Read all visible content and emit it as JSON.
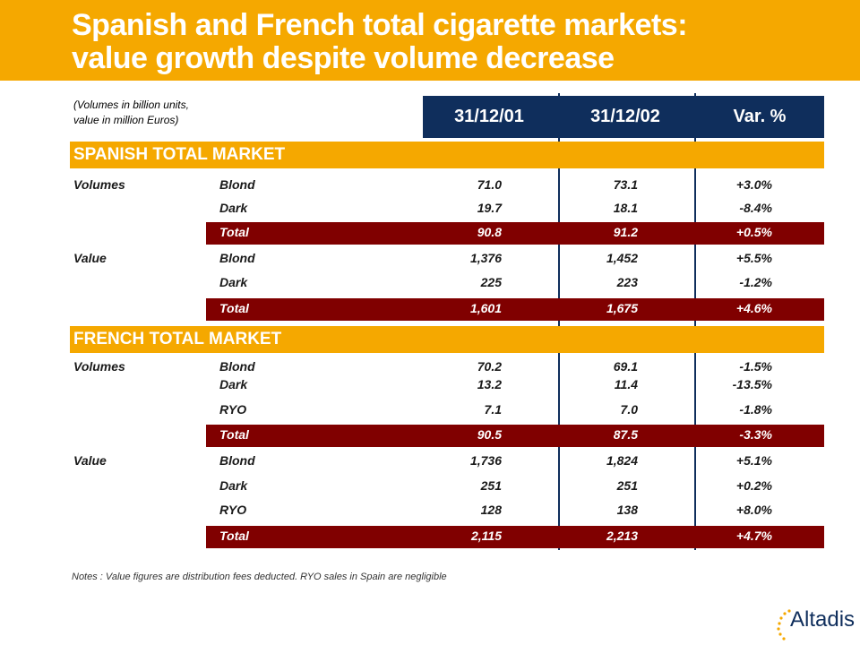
{
  "title": {
    "line1": "Spanish and French total cigarette markets:",
    "line2": "value growth despite volume decrease"
  },
  "units_note": {
    "line1": "(Volumes in billion units,",
    "line2": "value in million Euros)"
  },
  "columns": [
    "31/12/01",
    "31/12/02",
    "Var. %"
  ],
  "sections": [
    {
      "label": "SPANISH TOTAL MARKET",
      "rows": [
        {
          "group": "Volumes",
          "item": "Blond",
          "v1": "71.0",
          "v2": "73.1",
          "var": "+3.0%"
        },
        {
          "group": "",
          "item": "Dark",
          "v1": "19.7",
          "v2": "18.1",
          "var": "-8.4%"
        },
        {
          "group": "",
          "item": "Total",
          "v1": "90.8",
          "v2": "91.2",
          "var": "+0.5%",
          "total": true
        },
        {
          "group": "Value",
          "item": "Blond",
          "v1": "1,376",
          "v2": "1,452",
          "var": "+5.5%"
        },
        {
          "group": "",
          "item": "Dark",
          "v1": "225",
          "v2": "223",
          "var": "-1.2%"
        },
        {
          "group": "",
          "item": "Total",
          "v1": "1,601",
          "v2": "1,675",
          "var": "+4.6%",
          "total": true
        }
      ]
    },
    {
      "label": "FRENCH TOTAL MARKET",
      "rows": [
        {
          "group": "Volumes",
          "item": "Blond",
          "v1": "70.2",
          "v2": "69.1",
          "var": "-1.5%"
        },
        {
          "group": "",
          "item": "Dark",
          "v1": "13.2",
          "v2": "11.4",
          "var": "-13.5%"
        },
        {
          "group": "",
          "item": "RYO",
          "v1": "7.1",
          "v2": "7.0",
          "var": "-1.8%"
        },
        {
          "group": "",
          "item": "Total",
          "v1": "90.5",
          "v2": "87.5",
          "var": "-3.3%",
          "total": true
        },
        {
          "group": "Value",
          "item": "Blond",
          "v1": "1,736",
          "v2": "1,824",
          "var": "+5.1%"
        },
        {
          "group": "",
          "item": "Dark",
          "v1": "251",
          "v2": "251",
          "var": "+0.2%"
        },
        {
          "group": "",
          "item": "RYO",
          "v1": "128",
          "v2": "138",
          "var": "+8.0%"
        },
        {
          "group": "",
          "item": "Total",
          "v1": "2,115",
          "v2": "2,213",
          "var": "+4.7%",
          "total": true
        }
      ]
    }
  ],
  "notes": "Notes : Value figures are distribution fees deducted.   RYO sales in Spain are negligible",
  "logo": {
    "text": "Altadis",
    "icon": "altadis-logo-dots-icon"
  },
  "colors": {
    "accent": "#F5A800",
    "navy": "#0F2E5C",
    "total_row": "#800000"
  }
}
